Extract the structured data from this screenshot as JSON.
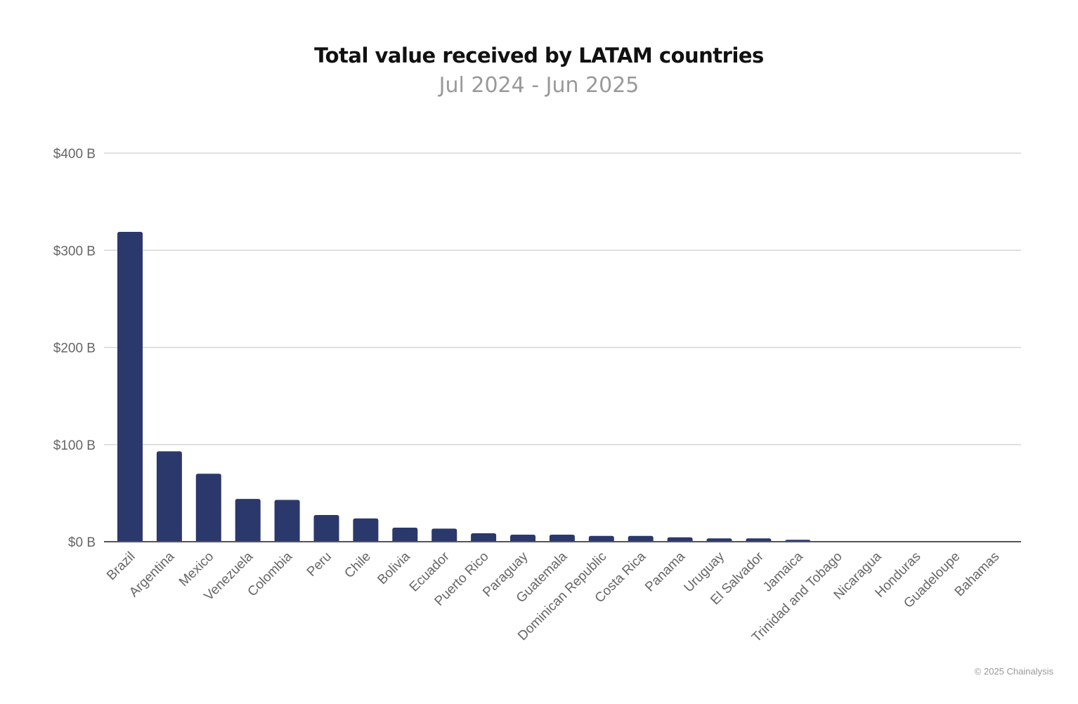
{
  "chart_data": {
    "type": "bar",
    "title": "Total value received by LATAM countries",
    "subtitle": "Jul 2024 - Jun 2025",
    "xlabel": "",
    "ylabel": "",
    "ylim": [
      0,
      400
    ],
    "yticks": [
      0,
      100,
      200,
      300,
      400
    ],
    "ytick_labels": [
      "$0 B",
      "$100 B",
      "$200 B",
      "$300 B",
      "$400 B"
    ],
    "grid": true,
    "bar_color": "#2b386b",
    "categories": [
      "Brazil",
      "Argentina",
      "Mexico",
      "Venezuela",
      "Colombia",
      "Peru",
      "Chile",
      "Bolivia",
      "Ecuador",
      "Puerto Rico",
      "Paraguay",
      "Guatemala",
      "Dominican Republic",
      "Costa Rica",
      "Panama",
      "Uruguay",
      "El Salvador",
      "Jamaica",
      "Trinidad and Tobago",
      "Nicaragua",
      "Honduras",
      "Guadeloupe",
      "Bahamas"
    ],
    "values": [
      319,
      93,
      70,
      44,
      43,
      27.5,
      24,
      14.5,
      13.5,
      8.7,
      7.2,
      7.2,
      6,
      6,
      4.5,
      3.4,
      3.4,
      2,
      0.4,
      0.4,
      0.4,
      0.1,
      0.1
    ]
  },
  "credit": "© 2025 Chainalysis"
}
